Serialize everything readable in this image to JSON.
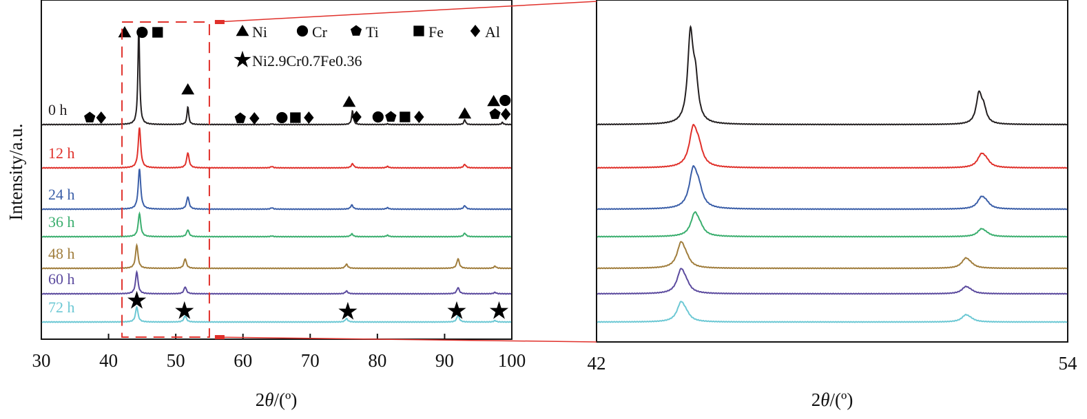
{
  "chart_data": [
    {
      "type": "line",
      "title": "",
      "xlabel": "2θ/(º)",
      "ylabel": "Intensity/a.u.",
      "xlim": [
        30,
        100
      ],
      "xticks": [
        30,
        40,
        50,
        60,
        70,
        80,
        90,
        100
      ],
      "zoom_box": [
        42,
        55
      ],
      "legend": {
        "placement": "top-center",
        "entries": [
          {
            "symbol": "triangle",
            "label": "Ni"
          },
          {
            "symbol": "circle",
            "label": "Cr"
          },
          {
            "symbol": "pentagon",
            "label": "Ti"
          },
          {
            "symbol": "square",
            "label": "Fe"
          },
          {
            "symbol": "diamond",
            "label": "Al"
          },
          {
            "symbol": "star",
            "label": "Ni2.9Cr0.7Fe0.36"
          }
        ]
      },
      "series": [
        {
          "name": "0 h",
          "color": "#231f20",
          "peaks": [
            [
              44.5,
              141
            ],
            [
              51.8,
              26
            ],
            [
              64.3,
              1
            ],
            [
              76.3,
              20
            ],
            [
              81.5,
              1
            ],
            [
              93.0,
              7
            ],
            [
              98.6,
              3
            ]
          ]
        },
        {
          "name": "12 h",
          "color": "#e0302a",
          "peaks": [
            [
              44.6,
              59
            ],
            [
              51.8,
              22
            ],
            [
              64.3,
              2
            ],
            [
              76.3,
              6
            ],
            [
              81.5,
              2
            ],
            [
              93.0,
              5
            ]
          ]
        },
        {
          "name": "24 h",
          "color": "#3a5ea8",
          "peaks": [
            [
              44.6,
              59
            ],
            [
              51.8,
              18
            ],
            [
              64.3,
              2
            ],
            [
              76.2,
              6
            ],
            [
              81.5,
              2
            ],
            [
              93.0,
              5
            ]
          ]
        },
        {
          "name": "36 h",
          "color": "#3aae6e",
          "peaks": [
            [
              44.6,
              34
            ],
            [
              51.8,
              10
            ],
            [
              64.3,
              1
            ],
            [
              76.2,
              4
            ],
            [
              81.5,
              2
            ],
            [
              93.0,
              5
            ]
          ]
        },
        {
          "name": "48 h",
          "color": "#a07d3c",
          "peaks": [
            [
              44.2,
              34
            ],
            [
              51.4,
              14
            ],
            [
              75.4,
              6
            ],
            [
              92.0,
              14
            ],
            [
              97.5,
              3
            ]
          ]
        },
        {
          "name": "60 h",
          "color": "#5b4a9e",
          "peaks": [
            [
              44.2,
              32
            ],
            [
              51.4,
              10
            ],
            [
              75.4,
              4
            ],
            [
              92.0,
              9
            ],
            [
              97.5,
              2
            ]
          ]
        },
        {
          "name": "72 h",
          "color": "#6cc8d4",
          "peaks": [
            [
              44.2,
              22
            ],
            [
              51.4,
              9
            ],
            [
              75.4,
              5
            ],
            [
              92.0,
              10
            ],
            [
              97.5,
              2
            ]
          ]
        }
      ],
      "markers": [
        {
          "series": "0 h",
          "symbol": "pentagon",
          "x": 37.2,
          "h": 10
        },
        {
          "series": "0 h",
          "symbol": "diamond",
          "x": 38.9,
          "h": 10
        },
        {
          "series": "0 h",
          "symbol": "triangle",
          "x": 42.4,
          "h": 134
        },
        {
          "series": "0 h",
          "symbol": "circle",
          "x": 45.0,
          "h": 134
        },
        {
          "series": "0 h",
          "symbol": "square",
          "x": 47.3,
          "h": 134
        },
        {
          "series": "0 h",
          "symbol": "triangle",
          "x": 51.8,
          "h": 51
        },
        {
          "series": "0 h",
          "symbol": "pentagon",
          "x": 59.6,
          "h": 9
        },
        {
          "series": "0 h",
          "symbol": "diamond",
          "x": 61.7,
          "h": 9
        },
        {
          "series": "0 h",
          "symbol": "circle",
          "x": 65.8,
          "h": 10
        },
        {
          "series": "0 h",
          "symbol": "square",
          "x": 67.8,
          "h": 10
        },
        {
          "series": "0 h",
          "symbol": "diamond",
          "x": 69.8,
          "h": 10
        },
        {
          "series": "0 h",
          "symbol": "triangle",
          "x": 75.8,
          "h": 33
        },
        {
          "series": "0 h",
          "symbol": "diamond",
          "x": 76.9,
          "h": 11
        },
        {
          "series": "0 h",
          "symbol": "circle",
          "x": 80.1,
          "h": 11
        },
        {
          "series": "0 h",
          "symbol": "pentagon",
          "x": 82.0,
          "h": 11
        },
        {
          "series": "0 h",
          "symbol": "square",
          "x": 84.1,
          "h": 11
        },
        {
          "series": "0 h",
          "symbol": "diamond",
          "x": 86.2,
          "h": 11
        },
        {
          "series": "0 h",
          "symbol": "triangle",
          "x": 93.0,
          "h": 16
        },
        {
          "series": "0 h",
          "symbol": "triangle",
          "x": 97.3,
          "h": 34
        },
        {
          "series": "0 h",
          "symbol": "circle",
          "x": 99.0,
          "h": 35
        },
        {
          "series": "0 h",
          "symbol": "pentagon",
          "x": 97.5,
          "h": 15
        },
        {
          "series": "0 h",
          "symbol": "diamond",
          "x": 99.1,
          "h": 15
        },
        {
          "series": "72 h",
          "symbol": "star",
          "x": 44.2,
          "h": 31
        },
        {
          "series": "72 h",
          "symbol": "star",
          "x": 51.3,
          "h": 16
        },
        {
          "series": "72 h",
          "symbol": "star",
          "x": 75.6,
          "h": 15
        },
        {
          "series": "72 h",
          "symbol": "star",
          "x": 91.8,
          "h": 16
        },
        {
          "series": "72 h",
          "symbol": "star",
          "x": 98.1,
          "h": 16
        }
      ]
    },
    {
      "type": "line",
      "title": "",
      "xlabel": "2θ/(º)",
      "ylabel": "",
      "xlim": [
        42,
        54
      ],
      "xticks": [
        42,
        54
      ],
      "series": [
        {
          "name": "0 h",
          "color": "#231f20",
          "peaks": [
            [
              44.39,
              125
            ],
            [
              44.52,
              55
            ],
            [
              51.74,
              42
            ],
            [
              51.86,
              20
            ]
          ]
        },
        {
          "name": "12 h",
          "color": "#e0302a",
          "peaks": [
            [
              44.46,
              52
            ],
            [
              44.6,
              24
            ],
            [
              51.8,
              17
            ],
            [
              51.92,
              8
            ]
          ]
        },
        {
          "name": "24 h",
          "color": "#3a5ea8",
          "peaks": [
            [
              44.46,
              52
            ],
            [
              44.6,
              24
            ],
            [
              51.8,
              15
            ],
            [
              51.92,
              7
            ]
          ]
        },
        {
          "name": "36 h",
          "color": "#3aae6e",
          "peaks": [
            [
              44.5,
              31
            ],
            [
              44.63,
              10
            ],
            [
              51.8,
              10
            ],
            [
              51.92,
              3
            ]
          ]
        },
        {
          "name": "48 h",
          "color": "#a07d3c",
          "peaks": [
            [
              44.15,
              34
            ],
            [
              44.28,
              10
            ],
            [
              51.4,
              13
            ],
            [
              51.52,
              4
            ]
          ]
        },
        {
          "name": "60 h",
          "color": "#5b4a9e",
          "peaks": [
            [
              44.15,
              32
            ],
            [
              44.28,
              10
            ],
            [
              51.4,
              9
            ],
            [
              51.52,
              3
            ]
          ]
        },
        {
          "name": "72 h",
          "color": "#6cc8d4",
          "peaks": [
            [
              44.15,
              26
            ],
            [
              44.28,
              8
            ],
            [
              51.4,
              9
            ],
            [
              51.52,
              3
            ]
          ]
        }
      ]
    }
  ]
}
